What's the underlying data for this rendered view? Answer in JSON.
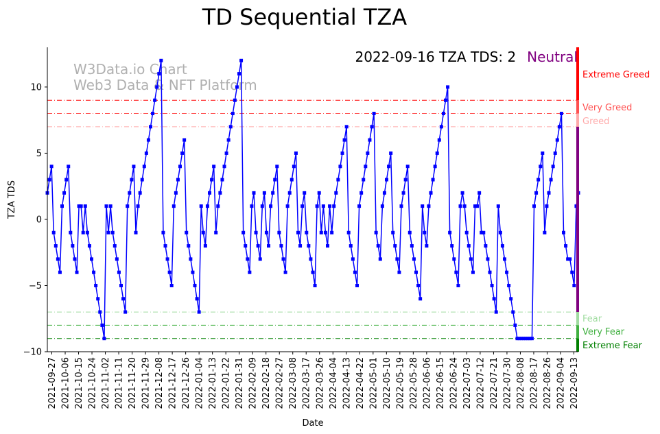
{
  "chart_data": {
    "type": "line",
    "title": "TD Sequential TZA",
    "xlabel": "Date",
    "ylabel": "TZA TDS",
    "ylim": [
      -10,
      13
    ],
    "yticks": [
      -10,
      -5,
      0,
      5,
      10
    ],
    "x_range": [
      "2021-09-24",
      "2022-09-16"
    ],
    "xtick_labels": [
      "2021-09-27",
      "2021-10-06",
      "2021-10-15",
      "2021-10-24",
      "2021-11-02",
      "2021-11-11",
      "2021-11-20",
      "2021-11-29",
      "2021-12-08",
      "2021-12-17",
      "2021-12-26",
      "2022-01-04",
      "2022-01-13",
      "2022-01-22",
      "2022-01-31",
      "2022-02-09",
      "2022-02-18",
      "2022-02-27",
      "2022-03-08",
      "2022-03-17",
      "2022-03-26",
      "2022-04-04",
      "2022-04-13",
      "2022-04-22",
      "2022-05-01",
      "2022-05-10",
      "2022-05-19",
      "2022-05-28",
      "2022-06-06",
      "2022-06-15",
      "2022-06-24",
      "2022-07-03",
      "2022-07-12",
      "2022-07-21",
      "2022-07-30",
      "2022-08-08",
      "2022-08-17",
      "2022-08-26",
      "2022-09-04",
      "2022-09-13"
    ],
    "series": [
      {
        "name": "TZA TDS",
        "color": "#0000ff",
        "values": [
          2,
          3,
          4,
          -1,
          -2,
          -3,
          -4,
          1,
          2,
          3,
          4,
          -1,
          -2,
          -3,
          -4,
          1,
          1,
          -1,
          1,
          -1,
          -2,
          -3,
          -4,
          -5,
          -6,
          -7,
          -8,
          -9,
          1,
          -1,
          1,
          -1,
          -2,
          -3,
          -4,
          -5,
          -6,
          -7,
          1,
          2,
          3,
          4,
          -1,
          1,
          2,
          3,
          4,
          5,
          6,
          7,
          8,
          9,
          10,
          11,
          12,
          -1,
          -2,
          -3,
          -4,
          -5,
          1,
          2,
          3,
          4,
          5,
          6,
          -1,
          -2,
          -3,
          -4,
          -5,
          -6,
          -7,
          1,
          -1,
          -2,
          1,
          2,
          3,
          4,
          -1,
          1,
          2,
          3,
          4,
          5,
          6,
          7,
          8,
          9,
          10,
          11,
          12,
          -1,
          -2,
          -3,
          -4,
          1,
          2,
          -1,
          -2,
          -3,
          1,
          2,
          -1,
          -2,
          1,
          2,
          3,
          4,
          -1,
          -2,
          -3,
          -4,
          1,
          2,
          3,
          4,
          5,
          -1,
          -2,
          1,
          2,
          -1,
          -2,
          -3,
          -4,
          -5,
          1,
          2,
          -1,
          1,
          -1,
          -2,
          1,
          -1,
          1,
          2,
          3,
          4,
          5,
          6,
          7,
          -1,
          -2,
          -3,
          -4,
          -5,
          1,
          2,
          3,
          4,
          5,
          6,
          7,
          8,
          -1,
          -2,
          -3,
          1,
          2,
          3,
          4,
          5,
          -1,
          -2,
          -3,
          -4,
          1,
          2,
          3,
          4,
          -1,
          -2,
          -3,
          -4,
          -5,
          -6,
          1,
          -1,
          -2,
          1,
          2,
          3,
          4,
          5,
          6,
          7,
          8,
          9,
          10,
          -1,
          -2,
          -3,
          -4,
          -5,
          1,
          2,
          1,
          -1,
          -2,
          -3,
          -4,
          1,
          1,
          2,
          -1,
          -1,
          -2,
          -3,
          -4,
          -5,
          -6,
          -7,
          1,
          -1,
          -2,
          -3,
          -4,
          -5,
          -6,
          -7,
          -8,
          -9,
          -9,
          -9,
          -9,
          -9,
          -9,
          -9,
          -9,
          1,
          2,
          3,
          4,
          5,
          -1,
          1,
          2,
          3,
          4,
          5,
          6,
          7,
          8,
          -1,
          -2,
          -3,
          -3,
          -4,
          -5,
          1,
          2
        ]
      }
    ],
    "thresholds": [
      {
        "label": "Extreme Greed",
        "value": 9,
        "color": "#ff0000"
      },
      {
        "label": "Very Greed",
        "value": 8,
        "color": "#ff5050"
      },
      {
        "label": "Greed",
        "value": 7,
        "color": "#ffaaaa"
      },
      {
        "label": "Fear",
        "value": -7,
        "color": "#a0dca0"
      },
      {
        "label": "Very Fear",
        "value": -8,
        "color": "#40b040"
      },
      {
        "label": "Extreme Fear",
        "value": -9,
        "color": "#008000"
      }
    ],
    "right_bar": [
      {
        "from": 9,
        "to": 13,
        "color": "#ff0000"
      },
      {
        "from": 8,
        "to": 9,
        "color": "#ff5050"
      },
      {
        "from": 7,
        "to": 8,
        "color": "#ffaaaa"
      },
      {
        "from": -7,
        "to": 7,
        "color": "#800080"
      },
      {
        "from": -8,
        "to": -7,
        "color": "#a0dca0"
      },
      {
        "from": -9,
        "to": -8,
        "color": "#40b040"
      },
      {
        "from": -10,
        "to": -9,
        "color": "#008000"
      }
    ]
  },
  "status": {
    "text": "2022-09-16 TZA TDS: 2",
    "sentiment": "Neutral",
    "sentiment_color": "#800080"
  },
  "watermark": {
    "line1": "W3Data.io Chart",
    "line2": "Web3 Data & NFT Platform"
  }
}
